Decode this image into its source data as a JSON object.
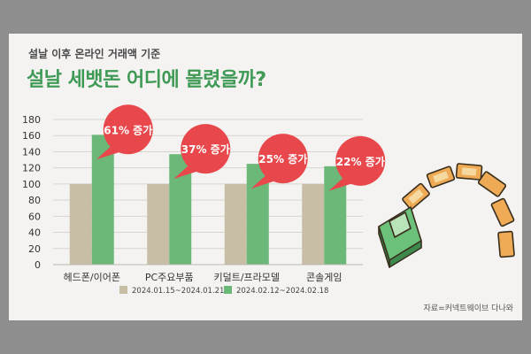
{
  "header": {
    "subtitle": "설날 이후 온라인 거래액 기준",
    "title": "설날 세뱃돈 어디에 몰렸을까?"
  },
  "source": "자료=커넥트웨이브 다나와",
  "colors": {
    "background": "#f5f3f1",
    "frame": "#8e8e8e",
    "title": "#3f9a56",
    "series_base": "#c8bea6",
    "series_holiday": "#6bb878",
    "bubble": "#e8484c",
    "bubble_text": "#ffffff"
  },
  "decoration": {
    "icon": "money-arch-icon"
  },
  "chart_data": {
    "type": "bar",
    "categories": [
      "헤드폰/이어폰",
      "PC주요부품",
      "키덜트/프라모델",
      "콘솔게임"
    ],
    "series": [
      {
        "name": "2024.01.15~2024.01.21",
        "values": [
          100,
          100,
          100,
          100
        ]
      },
      {
        "name": "2024.02.12~2024.02.18",
        "values": [
          161,
          137,
          125,
          122
        ]
      }
    ],
    "annotations": [
      "61% 증가",
      "37% 증가",
      "25% 증가",
      "22% 증가"
    ],
    "ylim": [
      0,
      180
    ],
    "yticks": [
      0,
      20,
      40,
      60,
      80,
      100,
      120,
      140,
      160,
      180
    ],
    "grid": true,
    "legend": "bottom",
    "xlabel": "",
    "ylabel": ""
  }
}
